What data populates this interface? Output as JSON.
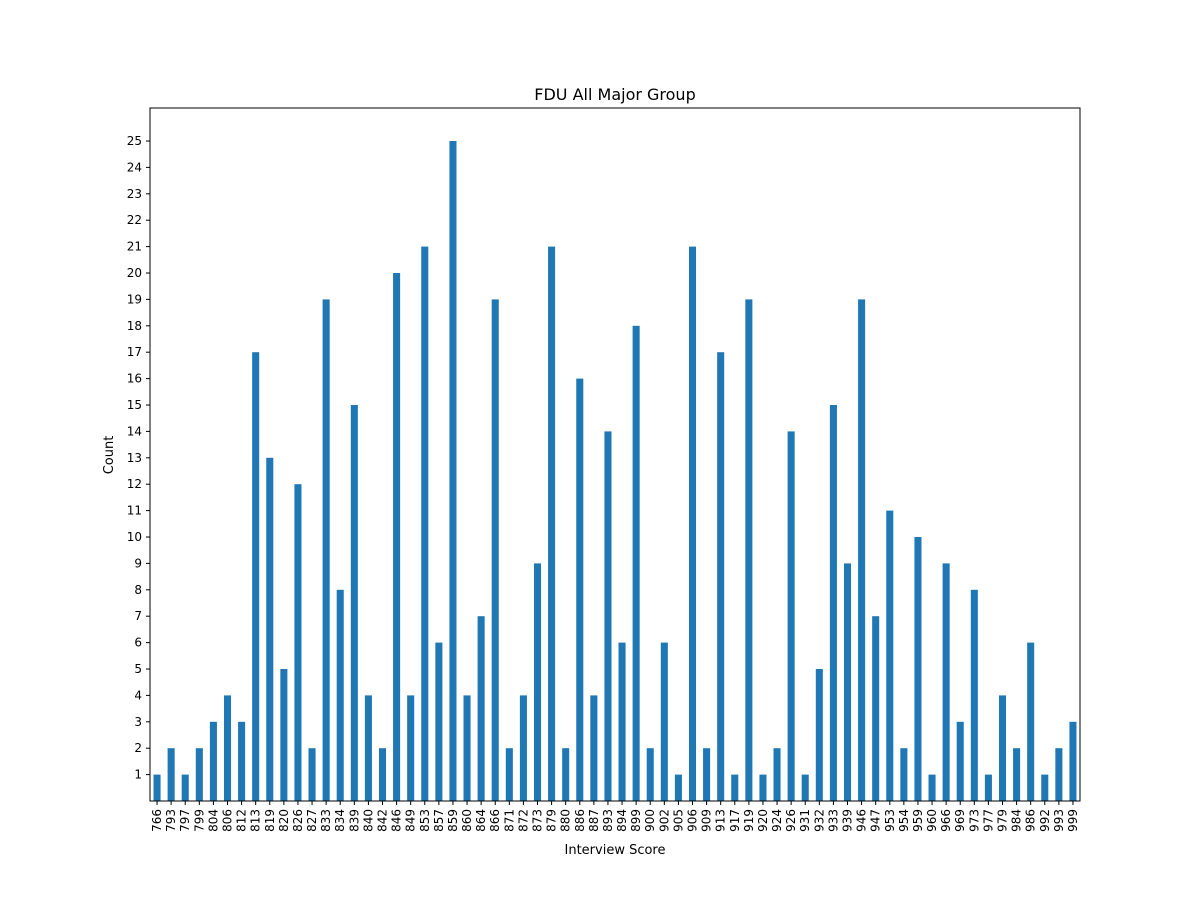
{
  "chart_data": {
    "type": "bar",
    "title": "FDU All Major Group",
    "xlabel": "Interview Score",
    "ylabel": "Count",
    "categories": [
      "766",
      "793",
      "797",
      "799",
      "804",
      "806",
      "812",
      "813",
      "819",
      "820",
      "826",
      "827",
      "833",
      "834",
      "839",
      "840",
      "842",
      "846",
      "849",
      "853",
      "857",
      "859",
      "860",
      "864",
      "866",
      "871",
      "872",
      "873",
      "879",
      "880",
      "886",
      "887",
      "893",
      "894",
      "899",
      "900",
      "902",
      "905",
      "906",
      "909",
      "913",
      "917",
      "919",
      "920",
      "924",
      "926",
      "931",
      "932",
      "933",
      "939",
      "946",
      "947",
      "953",
      "954",
      "959",
      "960",
      "966",
      "969",
      "973",
      "977",
      "979",
      "984",
      "986",
      "992",
      "993",
      "999"
    ],
    "values": [
      1,
      2,
      1,
      2,
      3,
      4,
      3,
      17,
      13,
      5,
      12,
      2,
      19,
      8,
      15,
      4,
      2,
      20,
      4,
      21,
      6,
      25,
      4,
      7,
      19,
      2,
      4,
      9,
      21,
      2,
      16,
      4,
      14,
      6,
      18,
      2,
      6,
      1,
      21,
      2,
      17,
      1,
      19,
      1,
      2,
      14,
      1,
      5,
      15,
      9,
      19,
      7,
      11,
      2,
      10,
      1,
      9,
      3,
      8,
      1,
      4,
      2,
      6,
      1,
      2,
      3
    ],
    "yticks": [
      1,
      2,
      3,
      4,
      5,
      6,
      7,
      8,
      9,
      10,
      11,
      12,
      13,
      14,
      15,
      16,
      17,
      18,
      19,
      20,
      21,
      22,
      23,
      24,
      25
    ],
    "ylim": [
      0,
      26.25
    ],
    "grid": false,
    "legend": "none",
    "bar_color": "#1f77b4"
  }
}
